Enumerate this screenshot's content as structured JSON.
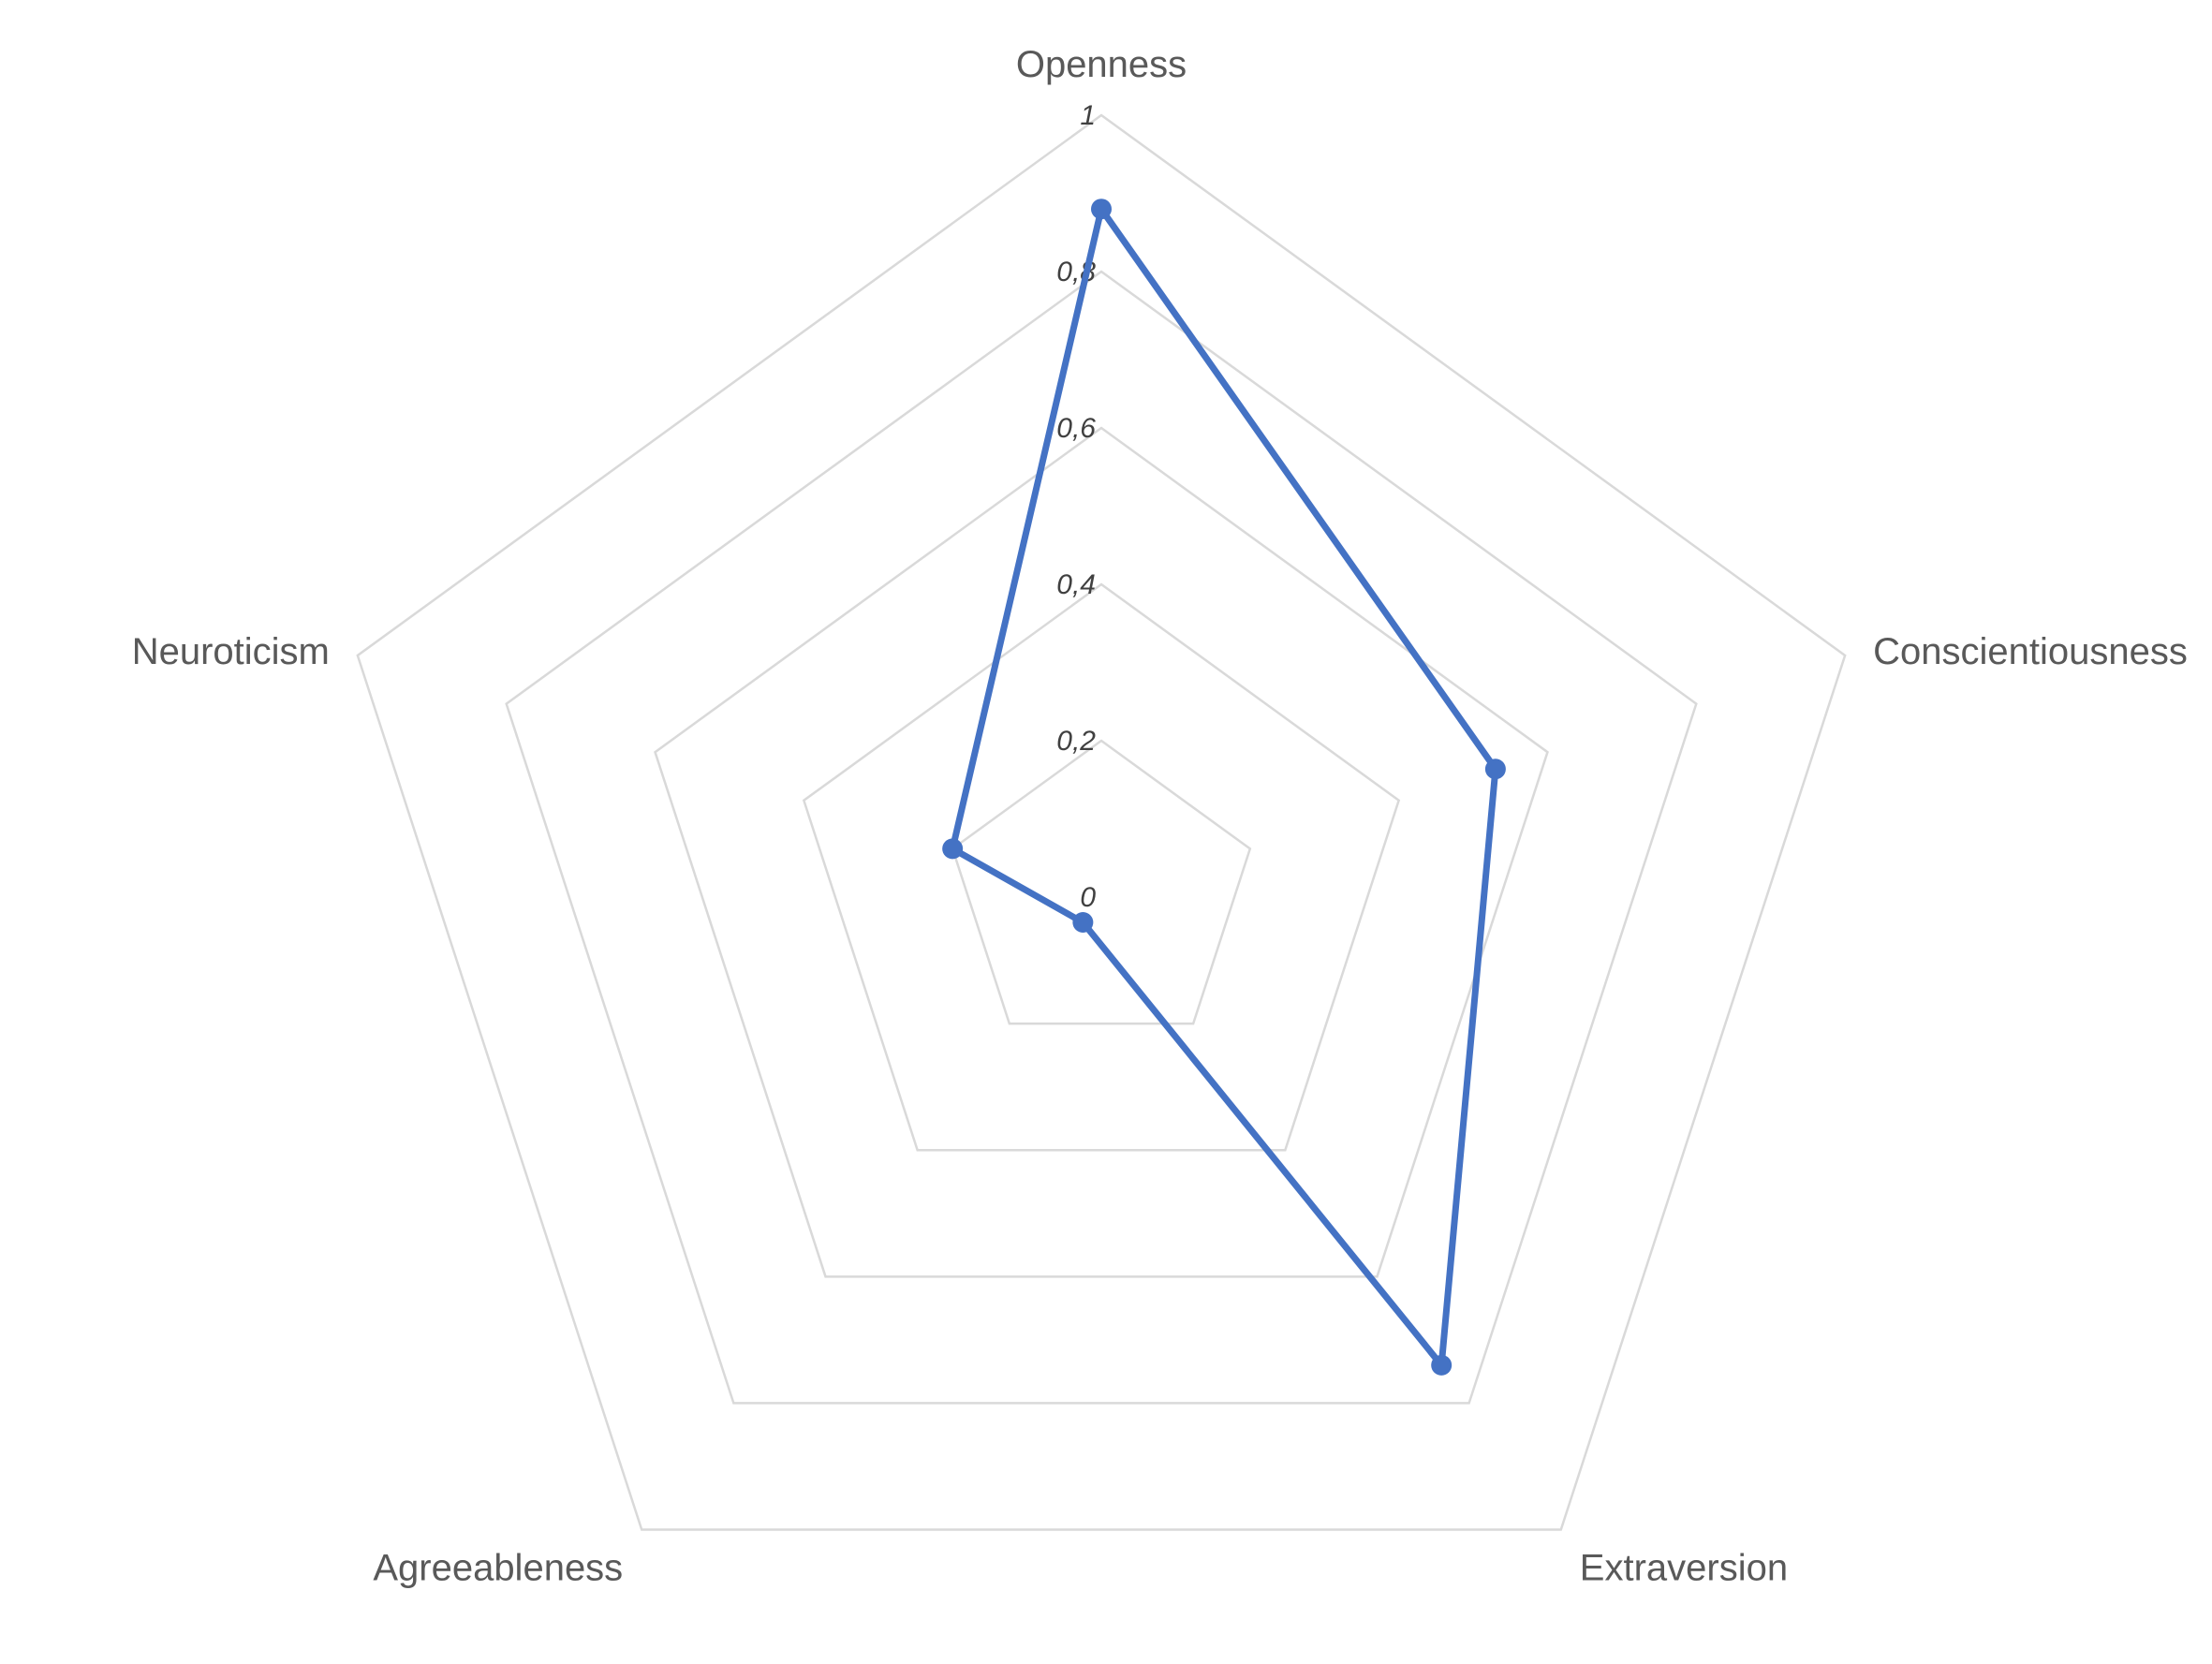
{
  "chart_data": {
    "type": "radar",
    "title": "",
    "categories": [
      "Openness",
      "Conscientiousness",
      "Extraversion",
      "Agreeableness",
      "Neuroticism"
    ],
    "series": [
      {
        "values": [
          0.88,
          0.53,
          0.74,
          0.04,
          0.2
        ],
        "color": "#4472C4"
      }
    ],
    "rlim": [
      0,
      1
    ],
    "ticks": [
      0,
      0.2,
      0.4,
      0.6,
      0.8,
      1
    ],
    "tick_labels": [
      "0",
      "0,2",
      "0,4",
      "0,6",
      "0,8",
      "1"
    ],
    "grid": true,
    "grid_color": "#D9D9D9",
    "legend": "none"
  }
}
